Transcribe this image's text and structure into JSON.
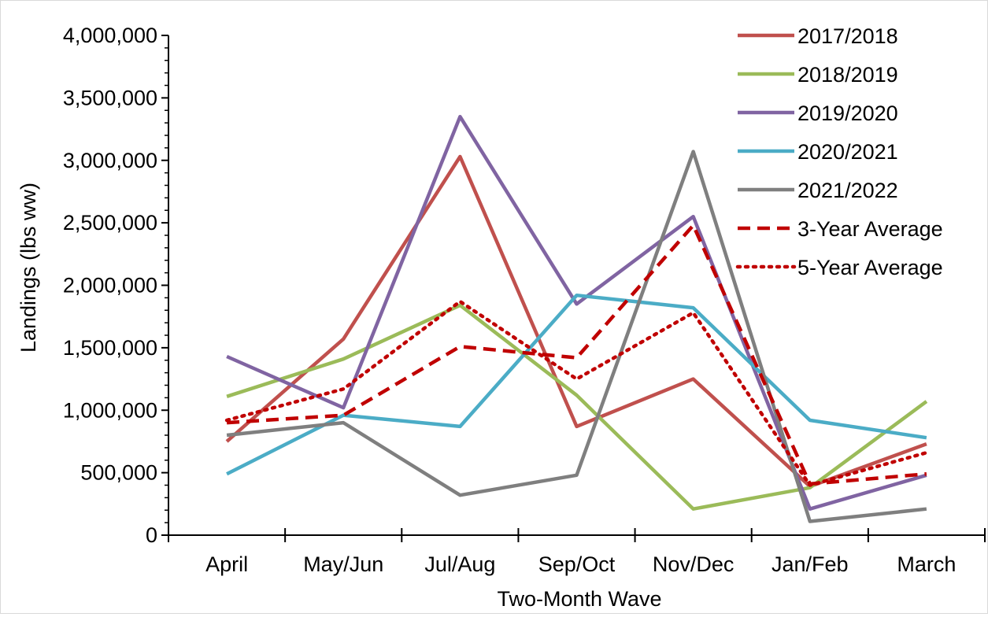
{
  "chart_data": {
    "type": "line",
    "title": "",
    "xlabel": "Two-Month Wave",
    "ylabel": "Landings (lbs ww)",
    "categories": [
      "April",
      "May/Jun",
      "Jul/Aug",
      "Sep/Oct",
      "Nov/Dec",
      "Jan/Feb",
      "March"
    ],
    "ylim": [
      0,
      4000000
    ],
    "yticks": [
      0,
      500000,
      1000000,
      1500000,
      2000000,
      2500000,
      3000000,
      3500000,
      4000000
    ],
    "ytick_labels": [
      "0",
      "500,000",
      "1,000,000",
      "1,500,000",
      "2,000,000",
      "2,500,000",
      "3,000,000",
      "3,500,000",
      "4,000,000"
    ],
    "grid": false,
    "legend_position": "top-right",
    "series": [
      {
        "name": "2017/2018",
        "color": "#c0504d",
        "dash": "solid",
        "values": [
          750000,
          1570000,
          3030000,
          870000,
          1250000,
          390000,
          730000
        ]
      },
      {
        "name": "2018/2019",
        "color": "#9bbb59",
        "dash": "solid",
        "values": [
          1110000,
          1410000,
          1840000,
          1120000,
          210000,
          380000,
          1070000
        ]
      },
      {
        "name": "2019/2020",
        "color": "#8064a2",
        "dash": "solid",
        "values": [
          1430000,
          1020000,
          3350000,
          1850000,
          2550000,
          210000,
          480000
        ]
      },
      {
        "name": "2020/2021",
        "color": "#4bacc6",
        "dash": "solid",
        "values": [
          490000,
          960000,
          870000,
          1920000,
          1820000,
          920000,
          780000
        ]
      },
      {
        "name": "2021/2022",
        "color": "#7f7f7f",
        "dash": "solid",
        "values": [
          800000,
          900000,
          320000,
          480000,
          3070000,
          110000,
          210000
        ]
      },
      {
        "name": "3-Year Average",
        "color": "#c00000",
        "dash": "dashed",
        "values": [
          900000,
          960000,
          1510000,
          1420000,
          2480000,
          410000,
          490000
        ]
      },
      {
        "name": "5-Year Average",
        "color": "#c00000",
        "dash": "dotted",
        "values": [
          920000,
          1170000,
          1870000,
          1250000,
          1780000,
          400000,
          660000
        ]
      }
    ]
  }
}
